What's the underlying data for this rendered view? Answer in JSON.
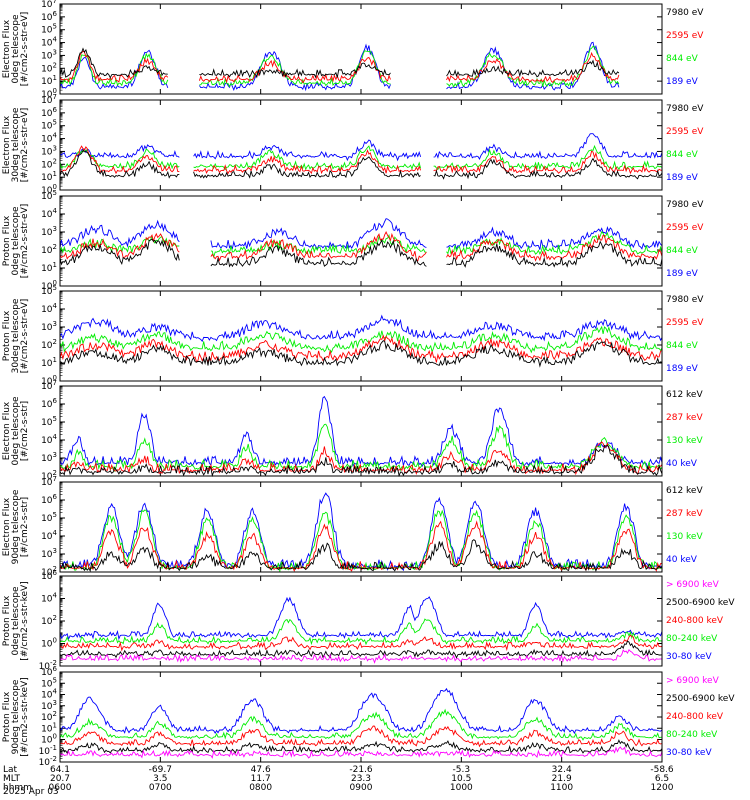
{
  "chart_data": [
    {
      "type": "line",
      "panel": "ted-electron-0deg",
      "ylabel": [
        "TED",
        "Electron Flux",
        "0deg telescope",
        "[#/cm2-s-str-eV]"
      ],
      "ylim_exp": [
        0,
        7
      ],
      "ytick_exps": [
        0,
        1,
        2,
        3,
        4,
        5,
        6,
        7
      ],
      "legend": [
        {
          "label": "7980 eV",
          "color": "#000000"
        },
        {
          "label": "2595 eV",
          "color": "#ff0000"
        },
        {
          "label": "844 eV",
          "color": "#00ee00"
        },
        {
          "label": "189 eV",
          "color": "#0000ff"
        }
      ],
      "background_log": [
        1.3,
        0.9,
        0.6,
        0.3
      ],
      "bursts": [
        {
          "t": 0.04,
          "peak": [
            3.4,
            3.2,
            3.0,
            2.8
          ],
          "w": 0.015
        },
        {
          "t": 0.145,
          "peak": [
            2.0,
            2.6,
            3.0,
            3.3
          ],
          "w": 0.02
        },
        {
          "t": 0.35,
          "peak": [
            1.8,
            2.4,
            2.9,
            3.3
          ],
          "w": 0.025
        },
        {
          "t": 0.51,
          "peak": [
            2.3,
            2.8,
            3.3,
            3.6
          ],
          "w": 0.02
        },
        {
          "t": 0.72,
          "peak": [
            2.0,
            2.6,
            3.1,
            3.4
          ],
          "w": 0.025
        },
        {
          "t": 0.885,
          "peak": [
            2.4,
            3.0,
            3.5,
            3.8
          ],
          "w": 0.02
        }
      ],
      "gaps": [
        [
          0.18,
          0.23
        ],
        [
          0.55,
          0.64
        ],
        [
          0.93,
          1.0
        ]
      ]
    },
    {
      "type": "line",
      "panel": "ted-electron-30deg",
      "ylabel": [
        "TED",
        "Electron Flux",
        "30deg telescope",
        "[#/cm2-s-str-eV]"
      ],
      "ylim_exp": [
        0,
        7
      ],
      "ytick_exps": [
        0,
        1,
        2,
        3,
        4,
        5,
        6,
        7
      ],
      "legend": [
        {
          "label": "7980 eV",
          "color": "#000000"
        },
        {
          "label": "2595 eV",
          "color": "#ff0000"
        },
        {
          "label": "844 eV",
          "color": "#00ee00"
        },
        {
          "label": "189 eV",
          "color": "#0000ff"
        }
      ],
      "background_log": [
        0.9,
        1.3,
        1.6,
        2.4
      ],
      "bursts": [
        {
          "t": 0.04,
          "peak": [
            2.9,
            3.3,
            3.1,
            3.0
          ],
          "w": 0.02
        },
        {
          "t": 0.145,
          "peak": [
            2.0,
            2.6,
            3.0,
            3.4
          ],
          "w": 0.02
        },
        {
          "t": 0.35,
          "peak": [
            1.8,
            2.4,
            2.9,
            3.3
          ],
          "w": 0.025
        },
        {
          "t": 0.51,
          "peak": [
            2.5,
            2.9,
            3.3,
            3.7
          ],
          "w": 0.02
        },
        {
          "t": 0.72,
          "peak": [
            2.2,
            2.5,
            3.0,
            3.3
          ],
          "w": 0.02
        },
        {
          "t": 0.885,
          "peak": [
            2.2,
            2.8,
            3.3,
            4.4
          ],
          "w": 0.02
        }
      ],
      "gaps": [
        [
          0.2,
          0.22
        ],
        [
          0.6,
          0.62
        ]
      ]
    },
    {
      "type": "line",
      "panel": "ted-proton-0deg",
      "ylabel": [
        "TED",
        "Proton Flux",
        "0deg telescope",
        "[#/cm2-s-str-eV]"
      ],
      "ylim_exp": [
        0,
        5
      ],
      "ytick_exps": [
        0,
        1,
        2,
        3,
        4,
        5
      ],
      "legend": [
        {
          "label": "7980 eV",
          "color": "#000000"
        },
        {
          "label": "2595 eV",
          "color": "#ff0000"
        },
        {
          "label": "844 eV",
          "color": "#00ee00"
        },
        {
          "label": "189 eV",
          "color": "#0000ff"
        }
      ],
      "background_log": [
        1.0,
        1.4,
        1.7,
        2.0
      ],
      "bursts": [
        {
          "t": 0.06,
          "peak": [
            2.2,
            2.4,
            2.4,
            3.2
          ],
          "w": 0.04
        },
        {
          "t": 0.16,
          "peak": [
            2.4,
            2.7,
            2.6,
            3.4
          ],
          "w": 0.04
        },
        {
          "t": 0.36,
          "peak": [
            2.0,
            2.4,
            2.3,
            3.0
          ],
          "w": 0.04
        },
        {
          "t": 0.54,
          "peak": [
            2.4,
            2.8,
            2.6,
            3.5
          ],
          "w": 0.04
        },
        {
          "t": 0.72,
          "peak": [
            2.2,
            2.5,
            2.5,
            3.0
          ],
          "w": 0.04
        },
        {
          "t": 0.9,
          "peak": [
            2.3,
            2.6,
            2.8,
            3.2
          ],
          "w": 0.04
        }
      ],
      "gaps": [
        [
          0.2,
          0.25
        ],
        [
          0.61,
          0.64
        ]
      ]
    },
    {
      "type": "line",
      "panel": "ted-proton-30deg",
      "ylabel": [
        "TED",
        "Proton Flux",
        "30deg telescope",
        "[#/cm2-s-str-eV]"
      ],
      "ylim_exp": [
        0,
        5
      ],
      "ytick_exps": [
        0,
        1,
        2,
        3,
        4,
        5
      ],
      "legend": [
        {
          "label": "7980 eV",
          "color": "#000000"
        },
        {
          "label": "2595 eV",
          "color": "#ff0000"
        },
        {
          "label": "844 eV",
          "color": "#00ee00"
        },
        {
          "label": "189 eV",
          "color": "#0000ff"
        }
      ],
      "background_log": [
        0.8,
        1.1,
        1.6,
        2.2
      ],
      "bursts": [
        {
          "t": 0.06,
          "peak": [
            1.6,
            2.0,
            2.4,
            3.3
          ],
          "w": 0.05
        },
        {
          "t": 0.16,
          "peak": [
            1.8,
            2.1,
            2.6,
            3.0
          ],
          "w": 0.04
        },
        {
          "t": 0.34,
          "peak": [
            1.6,
            2.0,
            2.6,
            3.2
          ],
          "w": 0.05
        },
        {
          "t": 0.54,
          "peak": [
            2.0,
            2.3,
            2.6,
            3.4
          ],
          "w": 0.05
        },
        {
          "t": 0.72,
          "peak": [
            1.8,
            2.1,
            2.5,
            3.1
          ],
          "w": 0.05
        },
        {
          "t": 0.9,
          "peak": [
            2.0,
            2.2,
            2.8,
            3.2
          ],
          "w": 0.05
        }
      ],
      "gaps": []
    },
    {
      "type": "line",
      "panel": "meped-electron-0deg",
      "ylabel": [
        "MEPED",
        "Electron Flux",
        "0deg telescope",
        "[#/cm2-s-str]"
      ],
      "ylim_exp": [
        2,
        7
      ],
      "ytick_exps": [
        2,
        3,
        4,
        5,
        6,
        7
      ],
      "legend": [
        {
          "label": "612 keV",
          "color": "#000000"
        },
        {
          "label": "287 keV",
          "color": "#ff0000"
        },
        {
          "label": "130 keV",
          "color": "#00ee00"
        },
        {
          "label": "40 keV",
          "color": "#0000ff"
        }
      ],
      "background_log": [
        2.0,
        2.1,
        2.3,
        2.5
      ],
      "bursts": [
        {
          "t": 0.03,
          "peak": [
            2.3,
            2.6,
            3.2,
            4.0
          ],
          "w": 0.015
        },
        {
          "t": 0.14,
          "peak": [
            2.5,
            3.0,
            4.0,
            5.4
          ],
          "w": 0.015
        },
        {
          "t": 0.31,
          "peak": [
            2.4,
            2.9,
            3.6,
            4.4
          ],
          "w": 0.015
        },
        {
          "t": 0.44,
          "peak": [
            2.8,
            3.4,
            5.0,
            6.3
          ],
          "w": 0.015
        },
        {
          "t": 0.65,
          "peak": [
            2.6,
            3.2,
            4.0,
            4.6
          ],
          "w": 0.02
        },
        {
          "t": 0.73,
          "peak": [
            2.8,
            3.4,
            4.6,
            5.8
          ],
          "w": 0.02
        },
        {
          "t": 0.905,
          "peak": [
            3.6,
            3.8,
            3.9,
            3.8
          ],
          "w": 0.03
        }
      ],
      "gaps": []
    },
    {
      "type": "line",
      "panel": "meped-electron-90deg",
      "ylabel": [
        "MEPED",
        "Electron Flux",
        "90deg telescope",
        "[#/cm2-s-str]"
      ],
      "ylim_exp": [
        2,
        7
      ],
      "ytick_exps": [
        2,
        3,
        4,
        5,
        6,
        7
      ],
      "legend": [
        {
          "label": "612 keV",
          "color": "#000000"
        },
        {
          "label": "287 keV",
          "color": "#ff0000"
        },
        {
          "label": "130 keV",
          "color": "#00ee00"
        },
        {
          "label": "40 keV",
          "color": "#0000ff"
        }
      ],
      "background_log": [
        2.0,
        2.0,
        2.0,
        2.1
      ],
      "bursts": [
        {
          "t": 0.085,
          "peak": [
            3.0,
            4.2,
            5.0,
            5.6
          ],
          "w": 0.02
        },
        {
          "t": 0.14,
          "peak": [
            3.3,
            4.4,
            5.3,
            5.8
          ],
          "w": 0.02
        },
        {
          "t": 0.245,
          "peak": [
            2.8,
            4.0,
            4.8,
            5.4
          ],
          "w": 0.02
        },
        {
          "t": 0.32,
          "peak": [
            3.0,
            4.0,
            4.8,
            5.4
          ],
          "w": 0.02
        },
        {
          "t": 0.44,
          "peak": [
            3.4,
            4.4,
            5.2,
            6.4
          ],
          "w": 0.02
        },
        {
          "t": 0.63,
          "peak": [
            3.5,
            4.6,
            5.4,
            6.0
          ],
          "w": 0.02
        },
        {
          "t": 0.69,
          "peak": [
            3.6,
            4.6,
            5.4,
            5.9
          ],
          "w": 0.02
        },
        {
          "t": 0.79,
          "peak": [
            3.0,
            4.0,
            4.8,
            5.4
          ],
          "w": 0.02
        },
        {
          "t": 0.94,
          "peak": [
            3.2,
            4.3,
            5.1,
            5.6
          ],
          "w": 0.02
        }
      ],
      "gaps": []
    },
    {
      "type": "line",
      "panel": "meped-proton-0deg",
      "ylabel": [
        "MEPED",
        "Proton Flux",
        "0deg telescope",
        "[#/cm2-s-str-keV]"
      ],
      "ylim_exp": [
        -2,
        6
      ],
      "ytick_exps": [
        -2,
        0,
        2,
        4,
        6
      ],
      "legend": [
        {
          "label": "> 6900 keV",
          "color": "#ff00ff"
        },
        {
          "label": "2500-6900 keV",
          "color": "#000000"
        },
        {
          "label": "240-800 keV",
          "color": "#ff0000"
        },
        {
          "label": "80-240 keV",
          "color": "#00ee00"
        },
        {
          "label": "30-80 keV",
          "color": "#0000ff"
        }
      ],
      "background_log": [
        -1.6,
        -1.2,
        -0.5,
        0.0,
        0.5
      ],
      "bursts": [
        {
          "t": 0.165,
          "peak": [
            -1.4,
            -0.8,
            0.2,
            1.6,
            3.5
          ],
          "w": 0.015
        },
        {
          "t": 0.38,
          "peak": [
            -1.4,
            -0.8,
            0.4,
            2.0,
            4.0
          ],
          "w": 0.02
        },
        {
          "t": 0.58,
          "peak": [
            -1.4,
            -0.8,
            0.2,
            1.7,
            3.2
          ],
          "w": 0.015
        },
        {
          "t": 0.61,
          "peak": [
            -1.4,
            -0.8,
            0.4,
            2.0,
            4.2
          ],
          "w": 0.02
        },
        {
          "t": 0.79,
          "peak": [
            -1.4,
            -0.8,
            0.2,
            1.6,
            3.5
          ],
          "w": 0.015
        },
        {
          "t": 0.945,
          "peak": [
            -0.6,
            0.0,
            0.5,
            0.8,
            1.0
          ],
          "w": 0.02
        }
      ],
      "gaps": []
    },
    {
      "type": "line",
      "panel": "meped-proton-90deg",
      "ylabel": [
        "MEPED",
        "Proton Flux",
        "90deg telescope",
        "[#/cm2-s-str-keV]"
      ],
      "ylim_exp": [
        -2,
        6
      ],
      "ytick_exps": [
        -2,
        -1,
        0,
        1,
        2,
        3,
        4,
        5,
        6
      ],
      "legend": [
        {
          "label": "> 6900 keV",
          "color": "#ff00ff"
        },
        {
          "label": "2500-6900 keV",
          "color": "#000000"
        },
        {
          "label": "240-800 keV",
          "color": "#ff0000"
        },
        {
          "label": "80-240 keV",
          "color": "#00ee00"
        },
        {
          "label": "30-80 keV",
          "color": "#0000ff"
        }
      ],
      "background_log": [
        -1.6,
        -1.2,
        -0.6,
        0.0,
        0.6
      ],
      "bursts": [
        {
          "t": 0.05,
          "peak": [
            -1.4,
            -0.5,
            0.6,
            1.6,
            3.6
          ],
          "w": 0.025
        },
        {
          "t": 0.165,
          "peak": [
            -1.4,
            -0.5,
            0.6,
            1.4,
            3.0
          ],
          "w": 0.02
        },
        {
          "t": 0.32,
          "peak": [
            -1.4,
            -0.5,
            0.8,
            1.8,
            3.5
          ],
          "w": 0.025
        },
        {
          "t": 0.52,
          "peak": [
            -1.3,
            -0.4,
            1.0,
            2.2,
            4.0
          ],
          "w": 0.03
        },
        {
          "t": 0.64,
          "peak": [
            -1.2,
            -0.3,
            1.0,
            2.4,
            4.5
          ],
          "w": 0.03
        },
        {
          "t": 0.79,
          "peak": [
            -1.4,
            -0.5,
            0.6,
            1.8,
            3.5
          ],
          "w": 0.025
        },
        {
          "t": 0.93,
          "peak": [
            -0.8,
            -0.3,
            0.6,
            1.2,
            2.0
          ],
          "w": 0.02
        }
      ],
      "gaps": []
    }
  ],
  "xaxis": {
    "row_labels": [
      "Lat",
      "MLT",
      "hhmm"
    ],
    "ticks": [
      {
        "lat": "64.1",
        "mlt": "20.7",
        "hhmm": "0600"
      },
      {
        "lat": "-69.7",
        "mlt": "3.5",
        "hhmm": "0700"
      },
      {
        "lat": "47.6",
        "mlt": "11.7",
        "hhmm": "0800"
      },
      {
        "lat": "-21.6",
        "mlt": "23.3",
        "hhmm": "0900"
      },
      {
        "lat": "-5.3",
        "mlt": "10.5",
        "hhmm": "1000"
      },
      {
        "lat": "32.4",
        "mlt": "21.9",
        "hhmm": "1100"
      },
      {
        "lat": "-58.6",
        "mlt": "6.5",
        "hhmm": "1200"
      }
    ]
  },
  "date_label": "2025 Apr 03"
}
